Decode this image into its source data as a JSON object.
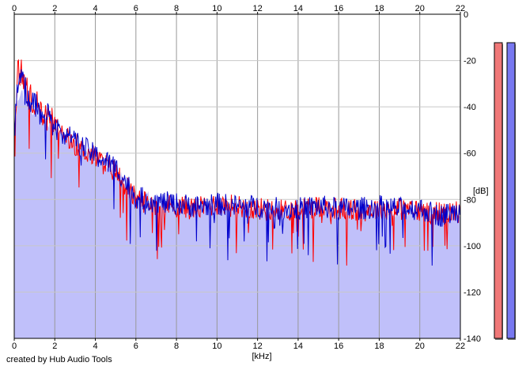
{
  "chart_data": {
    "type": "area",
    "xlabel": "[kHz]",
    "ylabel": "[dB]",
    "xlim": [
      0,
      22
    ],
    "ylim": [
      -140,
      0
    ],
    "x_ticks": [
      "0",
      "2",
      "4",
      "6",
      "8",
      "10",
      "12",
      "14",
      "16",
      "18",
      "20",
      "22"
    ],
    "y_ticks": [
      "0",
      "-20",
      "-40",
      "-60",
      "-80",
      "-100",
      "-120",
      "-140"
    ],
    "grid": true,
    "spectrum_envelope": {
      "x": [
        0,
        0.3,
        0.6,
        1,
        2,
        3,
        4,
        5,
        6,
        7,
        8,
        9,
        10,
        12,
        14,
        16,
        18,
        20,
        21,
        22
      ],
      "y": [
        -48,
        -35,
        -36,
        -42,
        -48,
        -56,
        -62,
        -67,
        -78,
        -80,
        -82,
        -83,
        -82,
        -83,
        -84,
        -84,
        -85,
        -85,
        -87,
        -86
      ]
    },
    "series": [
      {
        "color": "#ff0000",
        "x": [
          0,
          0.2,
          0.5,
          1,
          1.5,
          2,
          3,
          4,
          5,
          6,
          7,
          8,
          9,
          10,
          11,
          12,
          13,
          14,
          15,
          16,
          17,
          18,
          19,
          20,
          21,
          22
        ],
        "y": [
          -50,
          -22,
          -30,
          -38,
          -42,
          -48,
          -56,
          -62,
          -68,
          -80,
          -82,
          -83,
          -84,
          -82,
          -83,
          -84,
          -85,
          -84,
          -83,
          -84,
          -85,
          -84,
          -84,
          -85,
          -86,
          -85
        ]
      },
      {
        "color": "#0000cc",
        "x": [
          0,
          0.2,
          0.5,
          1,
          1.5,
          2,
          3,
          4,
          5,
          6,
          7,
          8,
          9,
          10,
          11,
          12,
          13,
          14,
          15,
          16,
          17,
          18,
          19,
          20,
          21,
          22
        ],
        "y": [
          -52,
          -28,
          -32,
          -40,
          -43,
          -49,
          -55,
          -61,
          -66,
          -79,
          -81,
          -82,
          -83,
          -82,
          -83,
          -83,
          -84,
          -84,
          -83,
          -84,
          -84,
          -83,
          -84,
          -84,
          -87,
          -85
        ]
      }
    ],
    "level_meters": [
      {
        "color": "#f07878"
      },
      {
        "color": "#7878f0"
      }
    ]
  },
  "credit": "created by Hub Audio Tools"
}
